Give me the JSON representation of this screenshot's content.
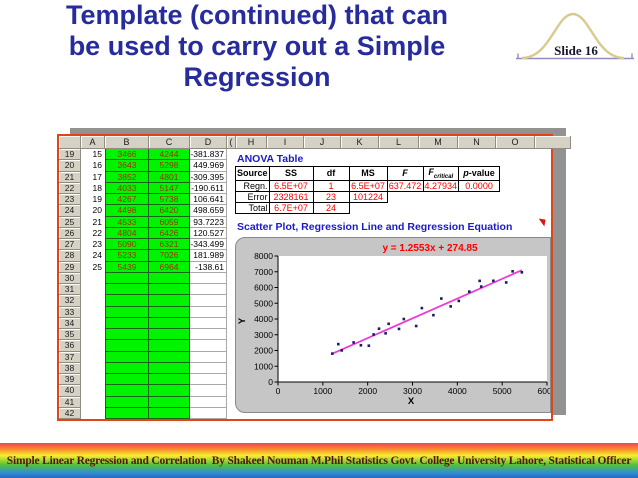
{
  "slide": {
    "title_lines": [
      "Template (continued) that can",
      "be used to carry out a Simple",
      "Regression"
    ],
    "badge_label": "Slide 16",
    "footer": "Simple Linear Regression and Correlation  By Shakeel Nouman M.Phil Statistics Govt. College University Lahore, Statistical Officer"
  },
  "spreadsheet": {
    "column_headers": [
      "A",
      "B",
      "C",
      "D",
      "(",
      "H",
      "I",
      "J",
      "K",
      "L",
      "M",
      "N",
      "O",
      ""
    ],
    "rows": [
      {
        "num": "19",
        "a": "15",
        "b": "3466",
        "c": "4244",
        "d": "-381.837"
      },
      {
        "num": "20",
        "a": "16",
        "b": "3643",
        "c": "5298",
        "d": "449.969"
      },
      {
        "num": "21",
        "a": "17",
        "b": "3852",
        "c": "4801",
        "d": "-309.395"
      },
      {
        "num": "22",
        "a": "18",
        "b": "4033",
        "c": "5147",
        "d": "-190.611"
      },
      {
        "num": "23",
        "a": "19",
        "b": "4267",
        "c": "5738",
        "d": "106.641"
      },
      {
        "num": "24",
        "a": "20",
        "b": "4498",
        "c": "6420",
        "d": "498.659"
      },
      {
        "num": "25",
        "a": "21",
        "b": "4533",
        "c": "6059",
        "d": "93.7223"
      },
      {
        "num": "26",
        "a": "22",
        "b": "4804",
        "c": "6426",
        "d": "120.527"
      },
      {
        "num": "27",
        "a": "23",
        "b": "5090",
        "c": "6321",
        "d": "-343.499"
      },
      {
        "num": "28",
        "a": "24",
        "b": "5233",
        "c": "7026",
        "d": "181.989"
      },
      {
        "num": "29",
        "a": "25",
        "b": "5439",
        "c": "6964",
        "d": "-138.61"
      },
      {
        "num": "30",
        "a": "",
        "b": "",
        "c": "",
        "d": ""
      },
      {
        "num": "31",
        "a": "",
        "b": "",
        "c": "",
        "d": ""
      },
      {
        "num": "32",
        "a": "",
        "b": "",
        "c": "",
        "d": ""
      },
      {
        "num": "33",
        "a": "",
        "b": "",
        "c": "",
        "d": ""
      },
      {
        "num": "34",
        "a": "",
        "b": "",
        "c": "",
        "d": ""
      },
      {
        "num": "35",
        "a": "",
        "b": "",
        "c": "",
        "d": ""
      },
      {
        "num": "36",
        "a": "",
        "b": "",
        "c": "",
        "d": ""
      },
      {
        "num": "37",
        "a": "",
        "b": "",
        "c": "",
        "d": ""
      },
      {
        "num": "38",
        "a": "",
        "b": "",
        "c": "",
        "d": ""
      },
      {
        "num": "39",
        "a": "",
        "b": "",
        "c": "",
        "d": ""
      },
      {
        "num": "40",
        "a": "",
        "b": "",
        "c": "",
        "d": ""
      },
      {
        "num": "41",
        "a": "",
        "b": "",
        "c": "",
        "d": ""
      },
      {
        "num": "42",
        "a": "",
        "b": "",
        "c": "",
        "d": ""
      }
    ],
    "colors": {
      "input_cell_bg": "#00f400",
      "input_cell_text": "#9c3000",
      "image_border": "#df4517"
    }
  },
  "anova": {
    "title": "ANOVA Table",
    "headers": [
      "Source",
      "SS",
      "df",
      "MS",
      "F",
      "F critical",
      "p-value"
    ],
    "rows": [
      {
        "source": "Regn.",
        "ss": "6.5E+07",
        "df": "1",
        "ms": "6.5E+07",
        "f": "637.472",
        "f_critical": "4.27934",
        "p_value": "0.0000"
      },
      {
        "source": "Error",
        "ss": "2328161",
        "df": "23",
        "ms": "101224",
        "f": "",
        "f_critical": "",
        "p_value": ""
      },
      {
        "source": "Total",
        "ss": "6.7E+07",
        "df": "24",
        "ms": "",
        "f": "",
        "f_critical": "",
        "p_value": ""
      }
    ],
    "value_color": "#fe0000",
    "title_color": "#1a1acc"
  },
  "chart_section": {
    "title": "Scatter Plot, Regression Line and Regression Equation"
  },
  "chart_data": {
    "type": "scatter",
    "title": "Scatter Plot, Regression Line and Regression Equation",
    "equation": "y = 1.2553x + 274.85",
    "xlabel": "X",
    "ylabel": "Y",
    "xlim": [
      0,
      6000
    ],
    "ylim": [
      0,
      8000
    ],
    "xticks": [
      0,
      1000,
      2000,
      3000,
      4000,
      5000,
      6000
    ],
    "yticks": [
      0,
      1000,
      2000,
      3000,
      4000,
      5000,
      6000,
      7000,
      8000
    ],
    "grid": false,
    "legend": false,
    "regression": {
      "slope": 1.2553,
      "intercept": 274.85,
      "x_start": 1211,
      "x_end": 5439,
      "line_color": "#ee3ad6"
    },
    "point_color": "#1b1b66",
    "points": [
      [
        1211,
        1802
      ],
      [
        1345,
        2405
      ],
      [
        1422,
        2005
      ],
      [
        1687,
        2511
      ],
      [
        1849,
        2332
      ],
      [
        2026,
        2305
      ],
      [
        2133,
        3016
      ],
      [
        2253,
        3385
      ],
      [
        2400,
        3090
      ],
      [
        2468,
        3694
      ],
      [
        2699,
        3371
      ],
      [
        2806,
        3998
      ],
      [
        3082,
        3555
      ],
      [
        3209,
        4692
      ],
      [
        3466,
        4244
      ],
      [
        3643,
        5298
      ],
      [
        3852,
        4801
      ],
      [
        4033,
        5147
      ],
      [
        4267,
        5738
      ],
      [
        4498,
        6420
      ],
      [
        4533,
        6059
      ],
      [
        4804,
        6426
      ],
      [
        5090,
        6321
      ],
      [
        5233,
        7026
      ],
      [
        5439,
        6964
      ]
    ]
  }
}
